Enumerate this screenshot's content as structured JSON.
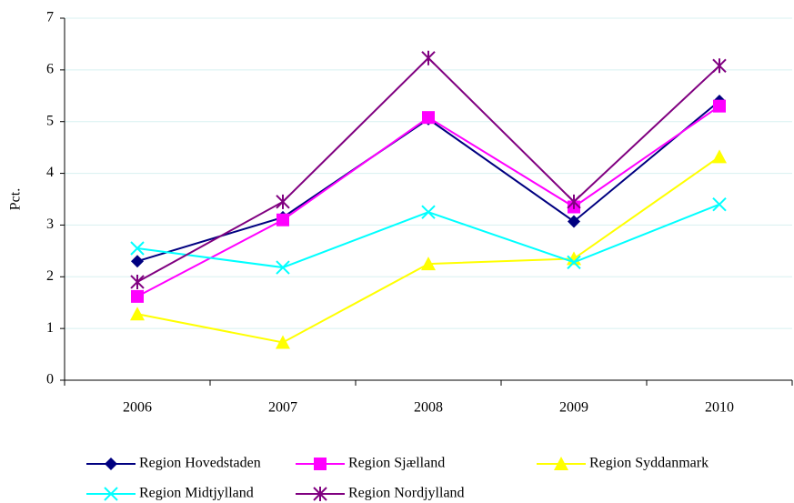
{
  "chart_data": {
    "type": "line",
    "ylabel": "Pct.",
    "categories": [
      "2006",
      "2007",
      "2008",
      "2009",
      "2010"
    ],
    "series": [
      {
        "name": "Region Hovedstaden",
        "color": "#000080",
        "marker": "diamond",
        "values": [
          2.3,
          3.15,
          5.05,
          3.07,
          5.4
        ]
      },
      {
        "name": "Region Sjælland",
        "color": "#ff00ff",
        "marker": "square",
        "values": [
          1.62,
          3.1,
          5.08,
          3.35,
          5.3
        ]
      },
      {
        "name": "Region Syddanmark",
        "color": "#ffff00",
        "marker": "triangle",
        "values": [
          1.28,
          0.73,
          2.25,
          2.35,
          4.32
        ]
      },
      {
        "name": "Region Midtjylland",
        "color": "#00ffff",
        "marker": "x",
        "values": [
          2.55,
          2.18,
          3.25,
          2.28,
          3.4
        ]
      },
      {
        "name": "Region Nordjylland",
        "color": "#800080",
        "marker": "asterisk",
        "values": [
          1.9,
          3.45,
          6.23,
          3.45,
          6.08
        ]
      }
    ],
    "ylim": [
      0,
      7
    ],
    "yticks": [
      0,
      1,
      2,
      3,
      4,
      5,
      6,
      7
    ],
    "grid": true
  }
}
